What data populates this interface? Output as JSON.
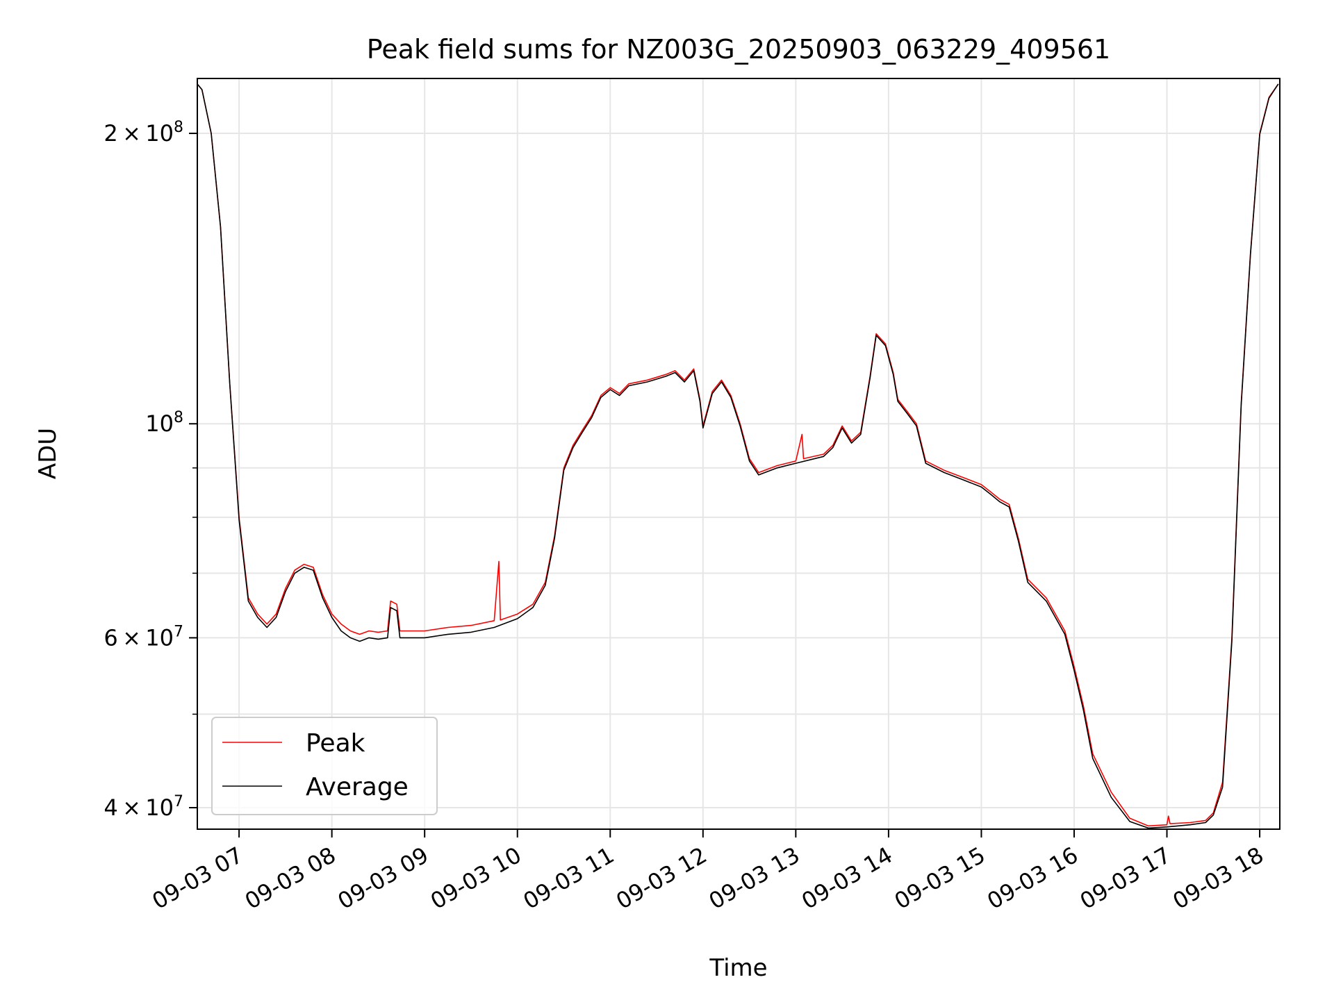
{
  "chart_data": {
    "type": "line",
    "title": "Peak field sums for NZ003G_20250903_063229_409561",
    "xlabel": "Time",
    "ylabel": "ADU",
    "yscale": "log",
    "grid": true,
    "legend_placement": "lower-left",
    "xlim": [
      "2025-09-03T06:33",
      "2025-09-03T18:13"
    ],
    "ylim": [
      38000000,
      228000000
    ],
    "x_ticks": [
      {
        "time": "2025-09-03T07:00",
        "label": "09-03 07"
      },
      {
        "time": "2025-09-03T08:00",
        "label": "09-03 08"
      },
      {
        "time": "2025-09-03T09:00",
        "label": "09-03 09"
      },
      {
        "time": "2025-09-03T10:00",
        "label": "09-03 10"
      },
      {
        "time": "2025-09-03T11:00",
        "label": "09-03 11"
      },
      {
        "time": "2025-09-03T12:00",
        "label": "09-03 12"
      },
      {
        "time": "2025-09-03T13:00",
        "label": "09-03 13"
      },
      {
        "time": "2025-09-03T14:00",
        "label": "09-03 14"
      },
      {
        "time": "2025-09-03T15:00",
        "label": "09-03 15"
      },
      {
        "time": "2025-09-03T16:00",
        "label": "09-03 16"
      },
      {
        "time": "2025-09-03T17:00",
        "label": "09-03 17"
      },
      {
        "time": "2025-09-03T18:00",
        "label": "09-03 18"
      }
    ],
    "y_major_ticks": [
      {
        "value": 40000000,
        "mantissa": "4",
        "exponent": "7"
      },
      {
        "value": 60000000,
        "mantissa": "6",
        "exponent": "7"
      },
      {
        "value": 100000000,
        "mantissa": "",
        "exponent": "8"
      },
      {
        "value": 200000000,
        "mantissa": "2",
        "exponent": "8"
      }
    ],
    "y_minor_ticks": [
      50000000,
      70000000,
      80000000,
      90000000
    ],
    "tick_base": "10",
    "tick_times": "×",
    "colors": {
      "peak": "#ff0000",
      "average": "#000000",
      "grid": "#e6e6e6"
    },
    "series": [
      {
        "name": "Peak",
        "color": "#ff0000",
        "points": [
          [
            "2025-09-03T06:33",
            225000000
          ],
          [
            "2025-09-03T06:36",
            222000000
          ],
          [
            "2025-09-03T06:42",
            200000000
          ],
          [
            "2025-09-03T06:48",
            160000000
          ],
          [
            "2025-09-03T06:54",
            110000000
          ],
          [
            "2025-09-03T07:00",
            80000000
          ],
          [
            "2025-09-03T07:06",
            66000000
          ],
          [
            "2025-09-03T07:12",
            63500000
          ],
          [
            "2025-09-03T07:18",
            62000000
          ],
          [
            "2025-09-03T07:24",
            63500000
          ],
          [
            "2025-09-03T07:30",
            67500000
          ],
          [
            "2025-09-03T07:36",
            70500000
          ],
          [
            "2025-09-03T07:42",
            71500000
          ],
          [
            "2025-09-03T07:48",
            71000000
          ],
          [
            "2025-09-03T07:54",
            66500000
          ],
          [
            "2025-09-03T08:00",
            63500000
          ],
          [
            "2025-09-03T08:06",
            62000000
          ],
          [
            "2025-09-03T08:12",
            61000000
          ],
          [
            "2025-09-03T08:18",
            60500000
          ],
          [
            "2025-09-03T08:24",
            61000000
          ],
          [
            "2025-09-03T08:30",
            60800000
          ],
          [
            "2025-09-03T08:36",
            61000000
          ],
          [
            "2025-09-03T08:38",
            65500000
          ],
          [
            "2025-09-03T08:42",
            65000000
          ],
          [
            "2025-09-03T08:44",
            61000000
          ],
          [
            "2025-09-03T08:50",
            61000000
          ],
          [
            "2025-09-03T09:00",
            61000000
          ],
          [
            "2025-09-03T09:15",
            61500000
          ],
          [
            "2025-09-03T09:30",
            61800000
          ],
          [
            "2025-09-03T09:45",
            62500000
          ],
          [
            "2025-09-03T09:48",
            72000000
          ],
          [
            "2025-09-03T09:49",
            62600000
          ],
          [
            "2025-09-03T10:00",
            63500000
          ],
          [
            "2025-09-03T10:10",
            65000000
          ],
          [
            "2025-09-03T10:18",
            68500000
          ],
          [
            "2025-09-03T10:24",
            76500000
          ],
          [
            "2025-09-03T10:30",
            90000000
          ],
          [
            "2025-09-03T10:36",
            95000000
          ],
          [
            "2025-09-03T10:42",
            98500000
          ],
          [
            "2025-09-03T10:48",
            102000000
          ],
          [
            "2025-09-03T10:54",
            107000000
          ],
          [
            "2025-09-03T11:00",
            109000000
          ],
          [
            "2025-09-03T11:06",
            107500000
          ],
          [
            "2025-09-03T11:12",
            110000000
          ],
          [
            "2025-09-03T11:24",
            111000000
          ],
          [
            "2025-09-03T11:36",
            112500000
          ],
          [
            "2025-09-03T11:42",
            113500000
          ],
          [
            "2025-09-03T11:48",
            111000000
          ],
          [
            "2025-09-03T11:54",
            114000000
          ],
          [
            "2025-09-03T11:58",
            106000000
          ],
          [
            "2025-09-03T12:00",
            99500000
          ],
          [
            "2025-09-03T12:06",
            108000000
          ],
          [
            "2025-09-03T12:12",
            111000000
          ],
          [
            "2025-09-03T12:18",
            107000000
          ],
          [
            "2025-09-03T12:24",
            100000000
          ],
          [
            "2025-09-03T12:30",
            92000000
          ],
          [
            "2025-09-03T12:36",
            89000000
          ],
          [
            "2025-09-03T12:48",
            90500000
          ],
          [
            "2025-09-03T13:00",
            91500000
          ],
          [
            "2025-09-03T13:04",
            97500000
          ],
          [
            "2025-09-03T13:05",
            92000000
          ],
          [
            "2025-09-03T13:18",
            93000000
          ],
          [
            "2025-09-03T13:24",
            95000000
          ],
          [
            "2025-09-03T13:30",
            99500000
          ],
          [
            "2025-09-03T13:36",
            96000000
          ],
          [
            "2025-09-03T13:42",
            98000000
          ],
          [
            "2025-09-03T13:48",
            112000000
          ],
          [
            "2025-09-03T13:52",
            124000000
          ],
          [
            "2025-09-03T13:58",
            121000000
          ],
          [
            "2025-09-03T14:03",
            113000000
          ],
          [
            "2025-09-03T14:06",
            106000000
          ],
          [
            "2025-09-03T14:12",
            103000000
          ],
          [
            "2025-09-03T14:18",
            100000000
          ],
          [
            "2025-09-03T14:24",
            91500000
          ],
          [
            "2025-09-03T14:36",
            89500000
          ],
          [
            "2025-09-03T14:48",
            88000000
          ],
          [
            "2025-09-03T15:00",
            86500000
          ],
          [
            "2025-09-03T15:06",
            85000000
          ],
          [
            "2025-09-03T15:12",
            83500000
          ],
          [
            "2025-09-03T15:18",
            82500000
          ],
          [
            "2025-09-03T15:24",
            76000000
          ],
          [
            "2025-09-03T15:30",
            69000000
          ],
          [
            "2025-09-03T15:42",
            66000000
          ],
          [
            "2025-09-03T15:54",
            61000000
          ],
          [
            "2025-09-03T16:00",
            56000000
          ],
          [
            "2025-09-03T16:06",
            51000000
          ],
          [
            "2025-09-03T16:12",
            45500000
          ],
          [
            "2025-09-03T16:24",
            41500000
          ],
          [
            "2025-09-03T16:36",
            39000000
          ],
          [
            "2025-09-03T16:48",
            38300000
          ],
          [
            "2025-09-03T17:00",
            38400000
          ],
          [
            "2025-09-03T17:01",
            39200000
          ],
          [
            "2025-09-03T17:02",
            38500000
          ],
          [
            "2025-09-03T17:15",
            38600000
          ],
          [
            "2025-09-03T17:25",
            38800000
          ],
          [
            "2025-09-03T17:30",
            39500000
          ],
          [
            "2025-09-03T17:36",
            42500000
          ],
          [
            "2025-09-03T17:42",
            60000000
          ],
          [
            "2025-09-03T17:48",
            105000000
          ],
          [
            "2025-09-03T17:54",
            150000000
          ],
          [
            "2025-09-03T18:00",
            200000000
          ],
          [
            "2025-09-03T18:06",
            218000000
          ],
          [
            "2025-09-03T18:12",
            225000000
          ]
        ]
      },
      {
        "name": "Average",
        "color": "#000000",
        "points": [
          [
            "2025-09-03T06:33",
            225000000
          ],
          [
            "2025-09-03T06:36",
            222000000
          ],
          [
            "2025-09-03T06:42",
            200000000
          ],
          [
            "2025-09-03T06:48",
            160000000
          ],
          [
            "2025-09-03T06:54",
            110000000
          ],
          [
            "2025-09-03T07:00",
            79500000
          ],
          [
            "2025-09-03T07:06",
            65500000
          ],
          [
            "2025-09-03T07:12",
            63000000
          ],
          [
            "2025-09-03T07:18",
            61500000
          ],
          [
            "2025-09-03T07:24",
            63000000
          ],
          [
            "2025-09-03T07:30",
            67000000
          ],
          [
            "2025-09-03T07:36",
            70000000
          ],
          [
            "2025-09-03T07:42",
            71000000
          ],
          [
            "2025-09-03T07:48",
            70500000
          ],
          [
            "2025-09-03T07:54",
            66000000
          ],
          [
            "2025-09-03T08:00",
            63000000
          ],
          [
            "2025-09-03T08:06",
            61000000
          ],
          [
            "2025-09-03T08:12",
            60000000
          ],
          [
            "2025-09-03T08:18",
            59500000
          ],
          [
            "2025-09-03T08:24",
            60000000
          ],
          [
            "2025-09-03T08:30",
            59800000
          ],
          [
            "2025-09-03T08:36",
            60000000
          ],
          [
            "2025-09-03T08:38",
            64500000
          ],
          [
            "2025-09-03T08:42",
            64000000
          ],
          [
            "2025-09-03T08:44",
            60000000
          ],
          [
            "2025-09-03T08:50",
            60000000
          ],
          [
            "2025-09-03T09:00",
            60000000
          ],
          [
            "2025-09-03T09:15",
            60500000
          ],
          [
            "2025-09-03T09:30",
            60800000
          ],
          [
            "2025-09-03T09:45",
            61500000
          ],
          [
            "2025-09-03T10:00",
            62800000
          ],
          [
            "2025-09-03T10:10",
            64500000
          ],
          [
            "2025-09-03T10:18",
            68000000
          ],
          [
            "2025-09-03T10:24",
            76000000
          ],
          [
            "2025-09-03T10:30",
            89500000
          ],
          [
            "2025-09-03T10:36",
            94500000
          ],
          [
            "2025-09-03T10:42",
            98000000
          ],
          [
            "2025-09-03T10:48",
            101500000
          ],
          [
            "2025-09-03T10:54",
            106500000
          ],
          [
            "2025-09-03T11:00",
            108500000
          ],
          [
            "2025-09-03T11:06",
            107000000
          ],
          [
            "2025-09-03T11:12",
            109500000
          ],
          [
            "2025-09-03T11:24",
            110500000
          ],
          [
            "2025-09-03T11:36",
            112000000
          ],
          [
            "2025-09-03T11:42",
            113000000
          ],
          [
            "2025-09-03T11:48",
            110500000
          ],
          [
            "2025-09-03T11:54",
            113500000
          ],
          [
            "2025-09-03T11:58",
            105500000
          ],
          [
            "2025-09-03T12:00",
            99000000
          ],
          [
            "2025-09-03T12:06",
            107500000
          ],
          [
            "2025-09-03T12:12",
            110500000
          ],
          [
            "2025-09-03T12:18",
            106500000
          ],
          [
            "2025-09-03T12:24",
            99500000
          ],
          [
            "2025-09-03T12:30",
            91500000
          ],
          [
            "2025-09-03T12:36",
            88500000
          ],
          [
            "2025-09-03T12:48",
            90000000
          ],
          [
            "2025-09-03T13:00",
            91000000
          ],
          [
            "2025-09-03T13:18",
            92500000
          ],
          [
            "2025-09-03T13:24",
            94500000
          ],
          [
            "2025-09-03T13:30",
            99000000
          ],
          [
            "2025-09-03T13:36",
            95500000
          ],
          [
            "2025-09-03T13:42",
            97500000
          ],
          [
            "2025-09-03T13:48",
            111500000
          ],
          [
            "2025-09-03T13:52",
            123500000
          ],
          [
            "2025-09-03T13:58",
            120500000
          ],
          [
            "2025-09-03T14:03",
            112500000
          ],
          [
            "2025-09-03T14:06",
            105500000
          ],
          [
            "2025-09-03T14:12",
            102500000
          ],
          [
            "2025-09-03T14:18",
            99500000
          ],
          [
            "2025-09-03T14:24",
            91000000
          ],
          [
            "2025-09-03T14:36",
            89000000
          ],
          [
            "2025-09-03T14:48",
            87500000
          ],
          [
            "2025-09-03T15:00",
            86000000
          ],
          [
            "2025-09-03T15:06",
            84500000
          ],
          [
            "2025-09-03T15:12",
            83000000
          ],
          [
            "2025-09-03T15:18",
            82000000
          ],
          [
            "2025-09-03T15:24",
            75500000
          ],
          [
            "2025-09-03T15:30",
            68500000
          ],
          [
            "2025-09-03T15:42",
            65500000
          ],
          [
            "2025-09-03T15:54",
            60500000
          ],
          [
            "2025-09-03T16:00",
            55500000
          ],
          [
            "2025-09-03T16:06",
            50500000
          ],
          [
            "2025-09-03T16:12",
            45000000
          ],
          [
            "2025-09-03T16:24",
            41000000
          ],
          [
            "2025-09-03T16:36",
            38700000
          ],
          [
            "2025-09-03T16:48",
            38100000
          ],
          [
            "2025-09-03T17:00",
            38200000
          ],
          [
            "2025-09-03T17:15",
            38400000
          ],
          [
            "2025-09-03T17:25",
            38600000
          ],
          [
            "2025-09-03T17:30",
            39300000
          ],
          [
            "2025-09-03T17:36",
            42000000
          ],
          [
            "2025-09-03T17:42",
            59500000
          ],
          [
            "2025-09-03T17:48",
            104500000
          ],
          [
            "2025-09-03T17:54",
            149500000
          ],
          [
            "2025-09-03T18:00",
            199500000
          ],
          [
            "2025-09-03T18:06",
            217500000
          ],
          [
            "2025-09-03T18:12",
            225000000
          ]
        ]
      }
    ]
  }
}
